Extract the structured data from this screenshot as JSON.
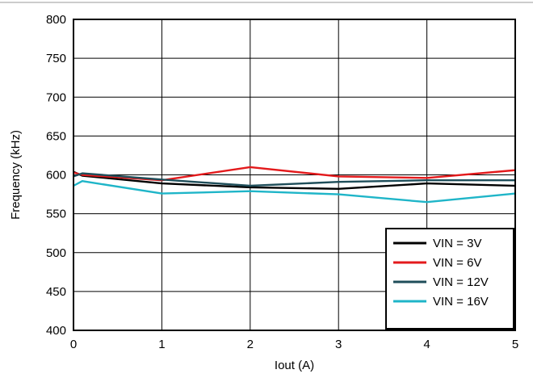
{
  "chart_data": {
    "type": "line",
    "xlabel": "Iout (A)",
    "ylabel": "Frequency (kHz)",
    "xlim": [
      0,
      5
    ],
    "ylim": [
      400,
      800
    ],
    "x_ticks": [
      0,
      1,
      2,
      3,
      4,
      5
    ],
    "y_ticks": [
      400,
      450,
      500,
      550,
      600,
      650,
      700,
      750,
      800
    ],
    "grid": true,
    "legend_position": "bottom-right",
    "series": [
      {
        "name": "VIN = 3V",
        "color": "#000000",
        "points": [
          [
            0,
            604
          ],
          [
            0.1,
            599
          ],
          [
            1,
            589
          ],
          [
            2,
            584
          ],
          [
            3,
            582
          ],
          [
            4,
            589
          ],
          [
            5,
            586
          ]
        ]
      },
      {
        "name": "VIN = 6V",
        "color": "#e31a1c",
        "points": [
          [
            0,
            603
          ],
          [
            0.1,
            600
          ],
          [
            1,
            593
          ],
          [
            2,
            610
          ],
          [
            3,
            598
          ],
          [
            4,
            596
          ],
          [
            5,
            606
          ]
        ]
      },
      {
        "name": "VIN = 12V",
        "color": "#1f4e5a",
        "points": [
          [
            0,
            598
          ],
          [
            0.1,
            602
          ],
          [
            1,
            594
          ],
          [
            2,
            586
          ],
          [
            3,
            591
          ],
          [
            4,
            593
          ],
          [
            5,
            593
          ]
        ]
      },
      {
        "name": "VIN = 16V",
        "color": "#1fb5c8",
        "points": [
          [
            0,
            586
          ],
          [
            0.1,
            592
          ],
          [
            1,
            576
          ],
          [
            2,
            579
          ],
          [
            3,
            575
          ],
          [
            4,
            565
          ],
          [
            5,
            576
          ]
        ]
      }
    ]
  }
}
